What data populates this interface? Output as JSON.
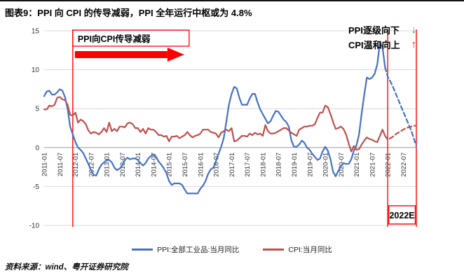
{
  "footer": {
    "source": "资料来源：wind、粤开证券研究院"
  },
  "colors": {
    "ppi_line": "#4472C4",
    "cpi_line": "#C0504D",
    "annotation_red": "#FF0000",
    "arrow_green": "#00B050",
    "grid": "#D9D9D9",
    "zero_axis": "#999999"
  },
  "annotations": {
    "transmission": {
      "label": "PPI向CPI传导减弱"
    },
    "ppi_trend": {
      "label": "PPI逐级向下",
      "arrow": "↓"
    },
    "cpi_trend": {
      "label": "CPI温和向上",
      "arrow": "↑"
    },
    "forecast": {
      "label": "2022E"
    },
    "vlines": [
      11,
      132,
      143
    ]
  },
  "chart_data": {
    "type": "line",
    "title": "图表9：PPI 向 CPI 的传导减弱，PPI 全年运行中枢或为 4.8%",
    "ylim": [
      -10,
      15
    ],
    "y_ticks": [
      15,
      10,
      5,
      0,
      -5,
      -10
    ],
    "grid": "horizontal",
    "legend_position": "bottom",
    "x_unit": "month",
    "x_start": "2011-01",
    "x_end": "2022-12",
    "forecast_start_index": 132,
    "x_tick_labels": [
      "2011-01",
      "2011-07",
      "2012-01",
      "2012-07",
      "2013-01",
      "2013-07",
      "2014-01",
      "2014-07",
      "2015-01",
      "2015-07",
      "2016-01",
      "2016-07",
      "2017-01",
      "2017-07",
      "2018-01",
      "2018-07",
      "2019-01",
      "2019-07",
      "2020-01",
      "2020-07",
      "2021-01",
      "2021-07",
      "2022-01",
      "2022-07"
    ],
    "series": [
      {
        "name": "PPI:全部工业品:当月同比",
        "color": "#4472C4",
        "values": [
          6.6,
          7.2,
          7.3,
          6.8,
          6.8,
          7.1,
          7.5,
          7.3,
          6.5,
          5.0,
          2.7,
          1.7,
          0.7,
          0.0,
          -0.3,
          -0.7,
          -1.4,
          -2.1,
          -2.9,
          -3.5,
          -3.6,
          -2.8,
          -2.2,
          -1.9,
          -1.6,
          -1.6,
          -1.9,
          -2.6,
          -2.9,
          -2.7,
          -2.3,
          -1.6,
          -1.3,
          -1.5,
          -1.4,
          -1.4,
          -1.6,
          -2.0,
          -2.3,
          -2.0,
          -1.4,
          -1.1,
          -0.9,
          -1.2,
          -1.8,
          -2.2,
          -2.7,
          -3.3,
          -4.3,
          -4.8,
          -4.6,
          -4.6,
          -4.6,
          -4.8,
          -5.4,
          -5.9,
          -5.9,
          -5.9,
          -5.9,
          -5.9,
          -5.3,
          -4.9,
          -4.3,
          -3.4,
          -2.8,
          -2.6,
          -1.7,
          -0.8,
          0.1,
          1.2,
          3.3,
          5.5,
          6.9,
          7.8,
          7.6,
          6.4,
          5.5,
          5.5,
          5.5,
          6.3,
          6.9,
          6.9,
          5.8,
          4.9,
          4.3,
          3.7,
          3.1,
          3.4,
          4.1,
          4.7,
          4.6,
          4.1,
          3.6,
          3.3,
          2.7,
          0.9,
          0.1,
          0.1,
          0.4,
          0.9,
          0.6,
          0.0,
          -0.3,
          -0.8,
          -1.2,
          -1.6,
          -1.4,
          -0.5,
          0.1,
          -0.4,
          -1.5,
          -3.1,
          -3.7,
          -3.0,
          -2.4,
          -2.0,
          -2.1,
          -2.1,
          -1.5,
          -0.4,
          0.3,
          1.7,
          4.4,
          6.8,
          9.0,
          8.8,
          9.0,
          9.5,
          10.7,
          13.5,
          12.9,
          10.3,
          9.1,
          8.5,
          7.8,
          7.0,
          6.2,
          5.4,
          4.6,
          3.8,
          3.0,
          2.2,
          1.2,
          0.2
        ]
      },
      {
        "name": "CPI:当月同比",
        "color": "#C0504D",
        "values": [
          4.9,
          4.9,
          5.4,
          5.3,
          5.5,
          6.4,
          6.5,
          6.2,
          6.1,
          5.5,
          4.2,
          4.1,
          4.5,
          3.2,
          3.6,
          3.4,
          3.0,
          2.2,
          1.8,
          2.0,
          1.9,
          1.7,
          2.0,
          2.5,
          2.0,
          3.2,
          2.1,
          2.4,
          2.1,
          2.7,
          2.7,
          2.6,
          3.1,
          3.2,
          3.0,
          2.5,
          2.5,
          2.0,
          2.4,
          1.8,
          2.5,
          2.3,
          2.3,
          2.0,
          1.6,
          1.6,
          1.4,
          1.5,
          0.8,
          1.4,
          1.4,
          1.5,
          1.2,
          1.4,
          1.6,
          2.0,
          1.6,
          1.3,
          1.5,
          1.6,
          1.8,
          2.3,
          2.3,
          2.3,
          2.0,
          1.9,
          1.8,
          1.3,
          1.9,
          2.1,
          2.3,
          2.1,
          2.5,
          0.8,
          0.9,
          1.2,
          1.5,
          1.5,
          1.4,
          1.8,
          1.6,
          1.9,
          1.7,
          1.8,
          1.5,
          2.9,
          2.1,
          1.8,
          1.8,
          1.9,
          2.1,
          2.3,
          2.5,
          2.5,
          2.2,
          1.9,
          1.7,
          1.5,
          2.3,
          2.5,
          2.7,
          2.7,
          2.8,
          2.8,
          3.0,
          3.8,
          4.5,
          4.5,
          5.4,
          5.2,
          4.3,
          3.3,
          2.4,
          2.5,
          2.7,
          2.4,
          1.7,
          0.5,
          -0.5,
          0.2,
          -0.3,
          -0.2,
          0.4,
          0.9,
          1.3,
          1.1,
          1.0,
          0.8,
          0.7,
          1.5,
          2.3,
          1.5,
          1.0,
          1.2,
          1.4,
          1.7,
          1.9,
          2.1,
          2.3,
          2.5,
          2.6,
          2.7,
          2.8,
          2.8
        ]
      }
    ]
  }
}
